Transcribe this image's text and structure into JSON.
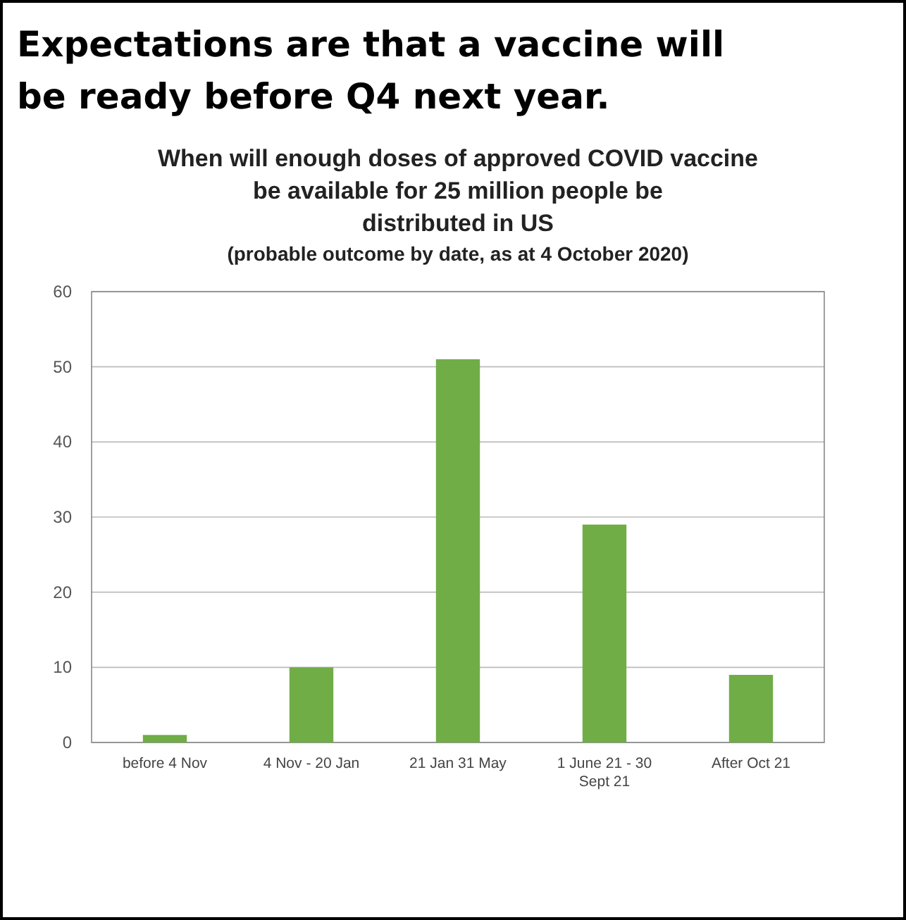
{
  "chart_data": {
    "type": "bar",
    "title": "Expectations are that a vaccine will be ready before Q4 next year.",
    "subtitle": "When will enough doses of approved COVID vaccine be available for 25 million people be distributed in US",
    "annotations": [
      "(probable outcome by date, as at 4 October 2020)"
    ],
    "categories": [
      "before 4 Nov",
      "4 Nov - 20 Jan",
      "21 Jan 31 May",
      "1 June 21 - 30 Sept 21",
      "After Oct 21"
    ],
    "values": [
      1,
      10,
      51,
      29,
      9
    ],
    "color": "#70ad47",
    "ylim": [
      0,
      60
    ],
    "yticks": [
      0,
      10,
      20,
      30,
      40,
      50,
      60
    ],
    "grid": "y"
  }
}
